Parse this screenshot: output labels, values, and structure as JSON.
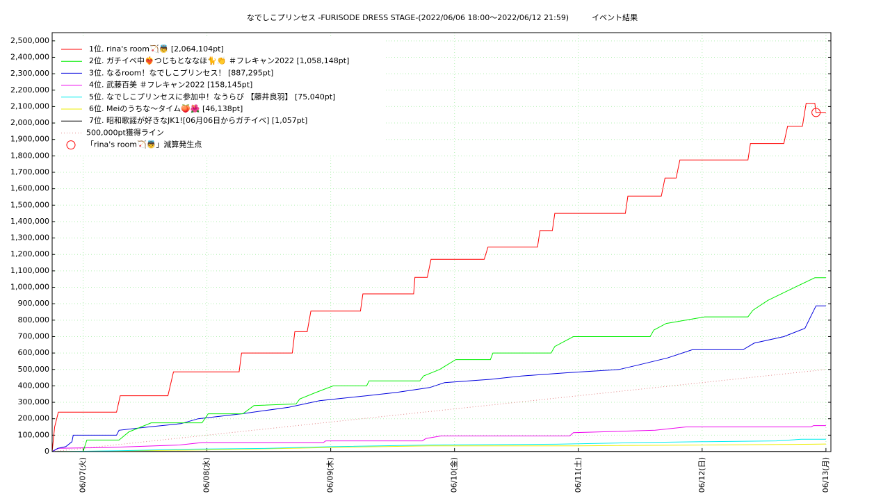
{
  "chart_data": {
    "type": "line",
    "title": "なでしこプリンセス -FURISODE DRESS STAGE-(2022/06/06 18:00～2022/06/12 21:59)　　　イベント結果",
    "xlim": [
      6.75,
      13.04
    ],
    "ylim": [
      0,
      2550000
    ],
    "grid": true,
    "legend": "upper left",
    "xticks": [
      {
        "value": 7,
        "label": "06/07(火)"
      },
      {
        "value": 8,
        "label": "06/08(水)"
      },
      {
        "value": 9,
        "label": "06/09(木)"
      },
      {
        "value": 10,
        "label": "06/10(金)"
      },
      {
        "value": 11,
        "label": "06/11(土)"
      },
      {
        "value": 12,
        "label": "06/12(日)"
      },
      {
        "value": 13,
        "label": "06/13(月)"
      }
    ],
    "yticks": [
      0,
      {
        "value": 100000,
        "label": "100,000"
      },
      {
        "value": 200000,
        "label": "200,000"
      },
      {
        "value": 300000,
        "label": "300,000"
      },
      {
        "value": 400000,
        "label": "400,000"
      },
      {
        "value": 500000,
        "label": "500,000"
      },
      {
        "value": 600000,
        "label": "600,000"
      },
      {
        "value": 700000,
        "label": "700,000"
      },
      {
        "value": 800000,
        "label": "800,000"
      },
      {
        "value": 900000,
        "label": "900,000"
      },
      {
        "value": 1000000,
        "label": "1,000,000"
      },
      {
        "value": 1100000,
        "label": "1,100,000"
      },
      {
        "value": 1200000,
        "label": "1,200,000"
      },
      {
        "value": 1300000,
        "label": "1,300,000"
      },
      {
        "value": 1400000,
        "label": "1,400,000"
      },
      {
        "value": 1500000,
        "label": "1,500,000"
      },
      {
        "value": 1600000,
        "label": "1,600,000"
      },
      {
        "value": 1700000,
        "label": "1,700,000"
      },
      {
        "value": 1800000,
        "label": "1,800,000"
      },
      {
        "value": 1900000,
        "label": "1,900,000"
      },
      {
        "value": 2000000,
        "label": "2,000,000"
      },
      {
        "value": 2100000,
        "label": "2,100,000"
      },
      {
        "value": 2200000,
        "label": "2,200,000"
      },
      {
        "value": 2300000,
        "label": "2,300,000"
      },
      {
        "value": 2400000,
        "label": "2,400,000"
      },
      {
        "value": 2500000,
        "label": "2,500,000"
      }
    ],
    "series": [
      {
        "name": "1位. rina's room🏹👼 [2,064,104pt]",
        "color": "#ff0000",
        "x": [
          6.75,
          6.77,
          6.8,
          7.27,
          7.3,
          7.685,
          7.73,
          8.26,
          8.28,
          8.69,
          8.71,
          8.81,
          8.84,
          9.24,
          9.26,
          9.67,
          9.68,
          9.78,
          9.81,
          10.24,
          10.27,
          10.67,
          10.69,
          10.79,
          10.81,
          11.38,
          11.4,
          11.67,
          11.7,
          11.79,
          11.82,
          12.37,
          12.39,
          12.66,
          12.69,
          12.81,
          12.84,
          12.91,
          12.92,
          13.0
        ],
        "values": [
          0,
          150000,
          240000,
          240000,
          340000,
          340000,
          485000,
          485000,
          600000,
          600000,
          730000,
          730000,
          855000,
          855000,
          960000,
          960000,
          1060000,
          1060000,
          1170000,
          1170000,
          1245000,
          1245000,
          1345000,
          1345000,
          1450000,
          1450000,
          1555000,
          1555000,
          1665000,
          1665000,
          1775000,
          1775000,
          1875000,
          1875000,
          1980000,
          1980000,
          2120000,
          2120000,
          2064104,
          2064104
        ]
      },
      {
        "name": "2位. ガチイベ中❤️‍🔥つじもとななほ🐈👏 ＃フレキャン2022 [1,058,148pt]",
        "color": "#00ee00",
        "x": [
          6.75,
          7.0,
          7.03,
          7.29,
          7.37,
          7.55,
          7.96,
          8.01,
          8.29,
          8.38,
          8.72,
          8.75,
          8.88,
          9.02,
          9.29,
          9.31,
          9.72,
          9.75,
          9.88,
          10.01,
          10.29,
          10.31,
          10.78,
          10.81,
          10.96,
          11.58,
          11.61,
          11.71,
          12.02,
          12.37,
          12.41,
          12.53,
          12.68,
          12.91,
          13.0
        ],
        "values": [
          0,
          0,
          70000,
          70000,
          120000,
          175000,
          175000,
          230000,
          230000,
          280000,
          290000,
          320000,
          360000,
          400000,
          400000,
          430000,
          430000,
          460000,
          500000,
          560000,
          560000,
          600000,
          600000,
          640000,
          700000,
          700000,
          740000,
          780000,
          820000,
          820000,
          860000,
          920000,
          975000,
          1058148,
          1058148
        ]
      },
      {
        "name": "3位. なるroom！なでしこプリンセス！ [887,295pt]",
        "color": "#0000dd",
        "x": [
          6.75,
          6.795,
          6.86,
          6.91,
          6.92,
          7.27,
          7.29,
          7.53,
          7.79,
          7.93,
          8.28,
          8.66,
          8.91,
          9.29,
          9.53,
          9.8,
          9.92,
          10.29,
          10.54,
          10.91,
          11.33,
          11.5,
          11.72,
          11.92,
          12.33,
          12.42,
          12.66,
          12.83,
          12.92,
          13.0
        ],
        "values": [
          0,
          20000,
          30000,
          60000,
          100000,
          100000,
          130000,
          150000,
          170000,
          200000,
          230000,
          270000,
          310000,
          340000,
          360000,
          390000,
          420000,
          440000,
          460000,
          480000,
          500000,
          530000,
          570000,
          620000,
          620000,
          660000,
          700000,
          750000,
          887295,
          887295
        ]
      },
      {
        "name": "4位. 武藤百美 ＃フレキャン2022 [158,145pt]",
        "color": "#ee00ee",
        "x": [
          6.75,
          6.8,
          7.2,
          7.78,
          7.96,
          8.94,
          8.96,
          9.74,
          9.77,
          9.89,
          10.93,
          10.96,
          11.62,
          11.87,
          12.88,
          12.9,
          13.0
        ],
        "values": [
          0,
          20000,
          25000,
          40000,
          55000,
          55000,
          65000,
          65000,
          80000,
          95000,
          95000,
          115000,
          130000,
          150000,
          150000,
          158145,
          158145
        ]
      },
      {
        "name": "5位. なでしこプリンセスに参加中！なうらび 【藤井良羽】 [75,040pt]",
        "color": "#00eeee",
        "x": [
          6.75,
          7.3,
          7.85,
          8.5,
          9.0,
          9.81,
          10.82,
          11.5,
          12.0,
          12.6,
          12.8,
          13.0
        ],
        "values": [
          0,
          5000,
          15000,
          20000,
          30000,
          40000,
          45000,
          55000,
          60000,
          65000,
          75040,
          75040
        ]
      },
      {
        "name": "6位. Meiのうちな〜タイム🍑🌺 [46,138pt]",
        "color": "#eeee00",
        "x": [
          6.75,
          8.0,
          9.0,
          9.8,
          11.0,
          12.9,
          13.0
        ],
        "values": [
          0,
          10000,
          25000,
          35000,
          35000,
          45000,
          46138
        ]
      },
      {
        "name": "7位. 昭和歌謡が好きなJK1![06月06日からガチイベ] [1,057pt]",
        "color": "#000000",
        "x": [
          6.75,
          6.8,
          13.0
        ],
        "values": [
          0,
          1057,
          1057
        ]
      },
      {
        "name": "500,000pt獲得ライン",
        "color": "#e08080",
        "style": "dotted",
        "x": [
          6.75,
          13.0
        ],
        "values": [
          0,
          500000
        ]
      },
      {
        "name": "「rina's room🏹👼」減算発生点",
        "color": "#ff0000",
        "marker": "circle",
        "x": [
          12.92
        ],
        "values": [
          2064104
        ]
      }
    ]
  }
}
